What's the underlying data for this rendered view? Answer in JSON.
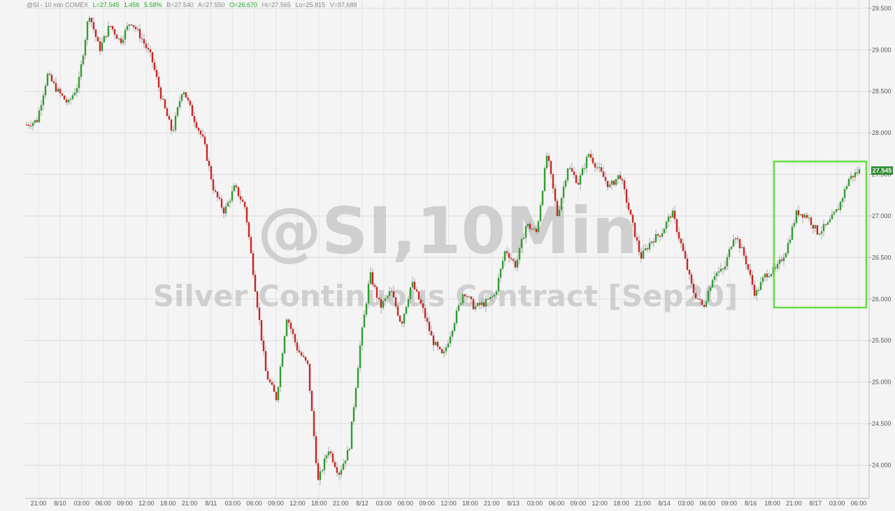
{
  "header": {
    "symbol": "@SI - 10 min  COMEX",
    "last": "L=27.545",
    "change": "1.456",
    "pct": "5.58%",
    "bid": "B=27.540",
    "ask": "A=27.550",
    "open": "O=26.670",
    "high": "Hi=27.565",
    "low": "Lo=25.815",
    "volume": "V=97,688"
  },
  "watermark": {
    "line1": "@SI,10Min",
    "line2": "Silver Continuous Contract [Sep20]"
  },
  "last_price_tag": "27.545",
  "colors": {
    "up": "#2e9e2e",
    "down": "#cc2222",
    "highlight_box": "#66dd44",
    "price_tag_bg": "#2e8b2e",
    "header_green": "#22aa22"
  },
  "chart_data": {
    "type": "candlestick",
    "ylim": [
      23.6,
      29.6
    ],
    "yticks": [
      "29.500",
      "29.000",
      "28.500",
      "28.000",
      "27.500",
      "27.000",
      "26.500",
      "26.000",
      "25.500",
      "25.000",
      "24.500",
      "24.000"
    ],
    "xticks": [
      "21:00",
      "8/10",
      "03:00",
      "06:00",
      "09:00",
      "12:00",
      "18:00",
      "21:00",
      "8/11",
      "03:00",
      "06:00",
      "09:00",
      "12:00",
      "18:00",
      "21:00",
      "8/12",
      "03:00",
      "06:00",
      "09:00",
      "12:00",
      "18:00",
      "21:00",
      "8/13",
      "03:00",
      "06:00",
      "09:00",
      "12:00",
      "18:00",
      "21:00",
      "8/14",
      "03:00",
      "06:00",
      "09:00",
      "8/16",
      "18:00",
      "21:00",
      "8/17",
      "03:00",
      "06:00"
    ],
    "approx_close_path": [
      {
        "x": "8/9 21:00",
        "y": 28.1
      },
      {
        "x": "8/10 00:00",
        "y": 28.15
      },
      {
        "x": "8/10 00:30",
        "y": 28.7
      },
      {
        "x": "8/10 01:30",
        "y": 28.5
      },
      {
        "x": "8/10 04:00",
        "y": 28.35
      },
      {
        "x": "8/10 05:30",
        "y": 28.6
      },
      {
        "x": "8/10 06:30",
        "y": 29.45
      },
      {
        "x": "8/10 08:00",
        "y": 29.0
      },
      {
        "x": "8/10 10:00",
        "y": 29.3
      },
      {
        "x": "8/10 12:00",
        "y": 29.1
      },
      {
        "x": "8/10 13:00",
        "y": 29.35
      },
      {
        "x": "8/10 18:00",
        "y": 29.15
      },
      {
        "x": "8/10 21:00",
        "y": 28.9
      },
      {
        "x": "8/11 00:00",
        "y": 28.4
      },
      {
        "x": "8/11 01:00",
        "y": 28.0
      },
      {
        "x": "8/11 02:30",
        "y": 28.55
      },
      {
        "x": "8/11 04:00",
        "y": 28.2
      },
      {
        "x": "8/11 05:00",
        "y": 27.9
      },
      {
        "x": "8/11 06:00",
        "y": 27.3
      },
      {
        "x": "8/11 07:00",
        "y": 27.05
      },
      {
        "x": "8/11 08:00",
        "y": 27.35
      },
      {
        "x": "8/11 09:00",
        "y": 27.1
      },
      {
        "x": "8/11 10:30",
        "y": 26.1
      },
      {
        "x": "8/11 12:00",
        "y": 25.1
      },
      {
        "x": "8/11 13:00",
        "y": 24.8
      },
      {
        "x": "8/11 14:00",
        "y": 25.8
      },
      {
        "x": "8/11 15:00",
        "y": 25.4
      },
      {
        "x": "8/11 17:00",
        "y": 25.2
      },
      {
        "x": "8/11 18:00",
        "y": 23.8
      },
      {
        "x": "8/11 19:00",
        "y": 24.2
      },
      {
        "x": "8/11 20:00",
        "y": 23.9
      },
      {
        "x": "8/11 22:00",
        "y": 24.2
      },
      {
        "x": "8/11 23:00",
        "y": 25.4
      },
      {
        "x": "8/12 01:00",
        "y": 26.3
      },
      {
        "x": "8/12 02:00",
        "y": 25.9
      },
      {
        "x": "8/12 04:00",
        "y": 26.1
      },
      {
        "x": "8/12 06:00",
        "y": 25.7
      },
      {
        "x": "8/12 08:00",
        "y": 26.2
      },
      {
        "x": "8/12 10:00",
        "y": 25.9
      },
      {
        "x": "8/12 12:00",
        "y": 25.5
      },
      {
        "x": "8/12 13:00",
        "y": 25.3
      },
      {
        "x": "8/12 15:00",
        "y": 25.7
      },
      {
        "x": "8/12 18:00",
        "y": 26.1
      },
      {
        "x": "8/12 21:00",
        "y": 25.9
      },
      {
        "x": "8/13 01:00",
        "y": 25.95
      },
      {
        "x": "8/13 03:00",
        "y": 26.05
      },
      {
        "x": "8/13 04:00",
        "y": 26.6
      },
      {
        "x": "8/13 05:00",
        "y": 26.4
      },
      {
        "x": "8/13 06:00",
        "y": 26.9
      },
      {
        "x": "8/13 08:00",
        "y": 26.8
      },
      {
        "x": "8/13 09:00",
        "y": 27.75
      },
      {
        "x": "8/13 10:00",
        "y": 27.0
      },
      {
        "x": "8/13 12:00",
        "y": 27.6
      },
      {
        "x": "8/13 13:00",
        "y": 27.4
      },
      {
        "x": "8/13 14:00",
        "y": 27.75
      },
      {
        "x": "8/13 18:00",
        "y": 27.55
      },
      {
        "x": "8/13 21:00",
        "y": 27.35
      },
      {
        "x": "8/14 00:00",
        "y": 27.5
      },
      {
        "x": "8/14 01:00",
        "y": 27.0
      },
      {
        "x": "8/14 02:00",
        "y": 26.5
      },
      {
        "x": "8/14 04:00",
        "y": 26.7
      },
      {
        "x": "8/14 06:00",
        "y": 26.8
      },
      {
        "x": "8/14 07:00",
        "y": 27.05
      },
      {
        "x": "8/14 08:30",
        "y": 26.6
      },
      {
        "x": "8/14 10:00",
        "y": 26.1
      },
      {
        "x": "8/14 10:30",
        "y": 25.9
      },
      {
        "x": "8/14 11:30",
        "y": 26.3
      },
      {
        "x": "8/14 13:00",
        "y": 26.35
      },
      {
        "x": "8/16 17:00",
        "y": 26.8
      },
      {
        "x": "8/16 17:30",
        "y": 26.5
      },
      {
        "x": "8/16 18:30",
        "y": 26.05
      },
      {
        "x": "8/16 19:30",
        "y": 26.3
      },
      {
        "x": "8/16 21:00",
        "y": 26.35
      },
      {
        "x": "8/16 23:00",
        "y": 26.6
      },
      {
        "x": "8/17 00:00",
        "y": 27.05
      },
      {
        "x": "8/17 01:00",
        "y": 27.0
      },
      {
        "x": "8/17 02:00",
        "y": 26.8
      },
      {
        "x": "8/17 03:30",
        "y": 26.9
      },
      {
        "x": "8/17 05:00",
        "y": 27.1
      },
      {
        "x": "8/17 06:00",
        "y": 27.45
      },
      {
        "x": "8/17 06:30",
        "y": 27.545
      }
    ]
  }
}
